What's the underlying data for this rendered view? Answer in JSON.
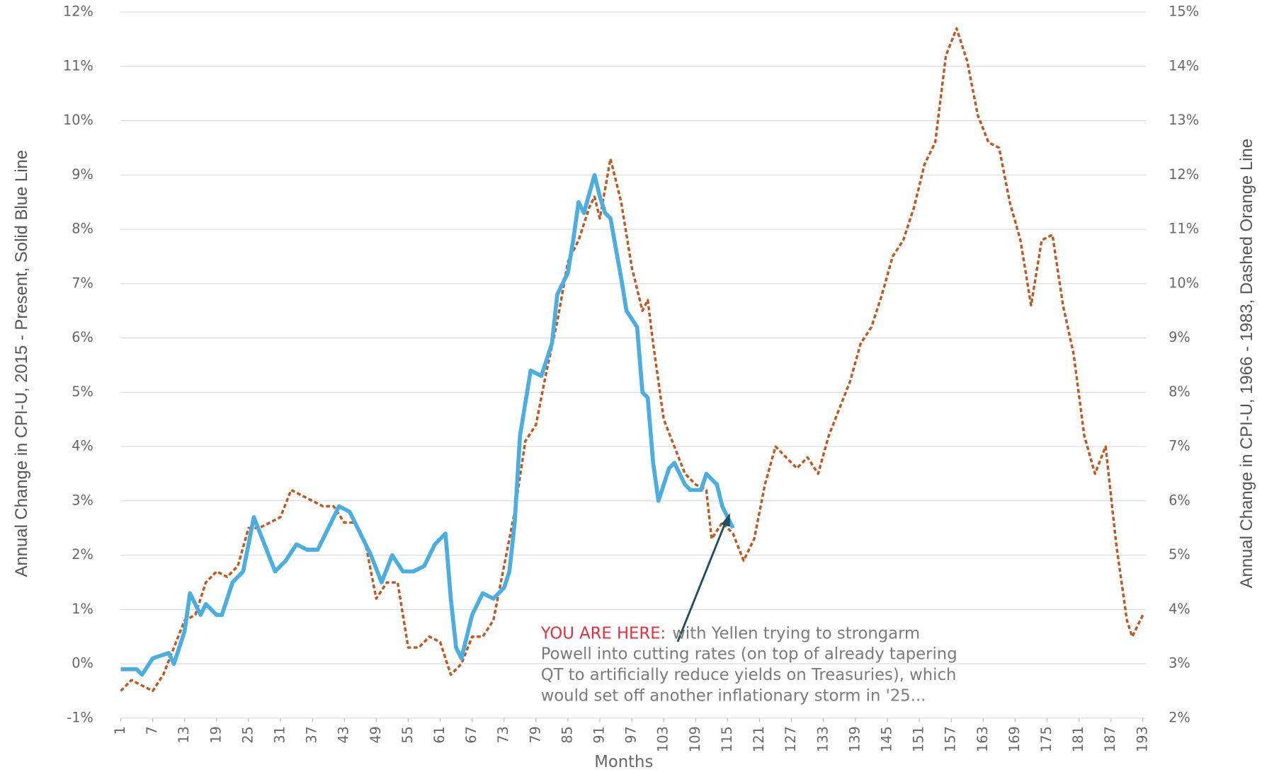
{
  "chart_data": {
    "type": "line",
    "xlabel": "Months",
    "ylabel": "Annual Change in CPI-U, 2015 - Present, Solid Blue Line",
    "y2label": "Annual Change in CPI-U, 1966 - 1983, Dashed Orange Line",
    "xlim": [
      1,
      193
    ],
    "xticks": [
      1,
      7,
      13,
      19,
      25,
      31,
      37,
      43,
      49,
      55,
      61,
      67,
      73,
      79,
      85,
      91,
      97,
      103,
      109,
      115,
      121,
      127,
      133,
      139,
      145,
      151,
      157,
      163,
      169,
      175,
      181,
      187,
      193
    ],
    "ylim": [
      -1,
      12
    ],
    "yticks": [
      {
        "value": -1,
        "label": "-1%"
      },
      {
        "value": 0,
        "label": "0%"
      },
      {
        "value": 1,
        "label": "1%"
      },
      {
        "value": 2,
        "label": "2%"
      },
      {
        "value": 3,
        "label": "3%"
      },
      {
        "value": 4,
        "label": "4%"
      },
      {
        "value": 5,
        "label": "5%"
      },
      {
        "value": 6,
        "label": "6%"
      },
      {
        "value": 7,
        "label": "7%"
      },
      {
        "value": 8,
        "label": "8%"
      },
      {
        "value": 9,
        "label": "9%"
      },
      {
        "value": 10,
        "label": "10%"
      },
      {
        "value": 11,
        "label": "11%"
      },
      {
        "value": 12,
        "label": "12%"
      }
    ],
    "y2lim": [
      2,
      15
    ],
    "y2ticks": [
      {
        "value": 2,
        "label": "2%"
      },
      {
        "value": 3,
        "label": "3%"
      },
      {
        "value": 4,
        "label": "4%"
      },
      {
        "value": 5,
        "label": "5%"
      },
      {
        "value": 6,
        "label": "6%"
      },
      {
        "value": 7,
        "label": "7%"
      },
      {
        "value": 8,
        "label": "8%"
      },
      {
        "value": 9,
        "label": "9%"
      },
      {
        "value": 10,
        "label": "10%"
      },
      {
        "value": 11,
        "label": "11%"
      },
      {
        "value": 12,
        "label": "12%"
      },
      {
        "value": 13,
        "label": "13%"
      },
      {
        "value": 14,
        "label": "14%"
      },
      {
        "value": 15,
        "label": "15%"
      }
    ],
    "grid": true,
    "series": [
      {
        "color": "#4aaee0",
        "style": "solid",
        "axis": "y",
        "x": [
          1,
          4,
          5,
          7,
          10,
          11,
          13,
          14,
          16,
          17,
          19,
          20,
          22,
          24,
          26,
          28,
          30,
          32,
          34,
          36,
          38,
          40,
          42,
          44,
          46,
          48,
          50,
          52,
          54,
          56,
          58,
          60,
          62,
          63,
          64,
          65,
          67,
          69,
          71,
          73,
          74,
          75,
          76,
          78,
          80,
          82,
          83,
          85,
          86,
          87,
          88,
          90,
          91,
          92,
          93,
          95,
          96,
          98,
          99,
          100,
          101,
          102,
          104,
          105,
          107,
          108,
          110,
          111,
          113,
          114,
          116
        ],
        "values": [
          -0.1,
          -0.1,
          -0.2,
          0.1,
          0.2,
          0.0,
          0.6,
          1.3,
          0.9,
          1.1,
          0.9,
          0.9,
          1.5,
          1.7,
          2.7,
          2.2,
          1.7,
          1.9,
          2.2,
          2.1,
          2.1,
          2.5,
          2.9,
          2.8,
          2.4,
          2.0,
          1.5,
          2.0,
          1.7,
          1.7,
          1.8,
          2.2,
          2.4,
          1.2,
          0.3,
          0.1,
          0.9,
          1.3,
          1.2,
          1.4,
          1.7,
          2.6,
          4.2,
          5.4,
          5.3,
          5.9,
          6.8,
          7.2,
          7.8,
          8.5,
          8.3,
          9.0,
          8.6,
          8.3,
          8.2,
          7.1,
          6.5,
          6.2,
          5.0,
          4.9,
          3.7,
          3.0,
          3.6,
          3.7,
          3.3,
          3.2,
          3.2,
          3.5,
          3.3,
          2.9,
          2.5
        ]
      },
      {
        "color": "#c0571e",
        "style": "dashed",
        "axis": "y2",
        "x": [
          1,
          3,
          5,
          7,
          9,
          11,
          13,
          15,
          17,
          19,
          21,
          23,
          25,
          27,
          29,
          31,
          33,
          35,
          37,
          39,
          41,
          43,
          45,
          47,
          49,
          51,
          53,
          55,
          57,
          59,
          61,
          63,
          65,
          67,
          69,
          71,
          73,
          75,
          77,
          79,
          81,
          83,
          85,
          87,
          89,
          90,
          91,
          93,
          95,
          97,
          99,
          100,
          101,
          103,
          105,
          107,
          109,
          111,
          112,
          114,
          116,
          118,
          120,
          122,
          124,
          126,
          128,
          130,
          132,
          134,
          136,
          138,
          140,
          142,
          144,
          146,
          148,
          150,
          152,
          154,
          156,
          158,
          160,
          162,
          164,
          166,
          168,
          170,
          172,
          174,
          176,
          178,
          180,
          182,
          184,
          186,
          188,
          190,
          191,
          193
        ],
        "values": [
          2.5,
          2.7,
          2.6,
          2.5,
          2.8,
          3.3,
          3.8,
          3.9,
          4.5,
          4.7,
          4.6,
          4.8,
          5.5,
          5.5,
          5.6,
          5.7,
          6.2,
          6.1,
          6.0,
          5.9,
          5.9,
          5.6,
          5.6,
          5.2,
          4.2,
          4.5,
          4.5,
          3.3,
          3.3,
          3.5,
          3.4,
          2.8,
          3.0,
          3.5,
          3.5,
          3.8,
          4.8,
          5.8,
          7.1,
          7.4,
          8.4,
          9.3,
          10.4,
          10.8,
          11.4,
          11.6,
          11.2,
          12.3,
          11.5,
          10.3,
          9.5,
          9.7,
          8.9,
          7.5,
          7.0,
          6.5,
          6.3,
          6.2,
          5.3,
          5.6,
          5.4,
          4.9,
          5.3,
          6.3,
          7.0,
          6.8,
          6.6,
          6.8,
          6.5,
          7.2,
          7.7,
          8.2,
          8.9,
          9.2,
          9.8,
          10.5,
          10.8,
          11.4,
          12.2,
          12.6,
          14.2,
          14.7,
          14.1,
          13.1,
          12.6,
          12.5,
          11.5,
          10.8,
          9.6,
          10.8,
          10.9,
          9.6,
          8.7,
          7.2,
          6.5,
          7.0,
          5.2,
          3.8,
          3.5,
          3.9
        ]
      }
    ],
    "annotation": {
      "highlight": "YOU ARE HERE:",
      "lines": [
        "with Yellen trying to strongarm",
        "Powell into cutting rates (on top of already tapering",
        "QT to artificially reduce yields on Treasuries), which",
        "would set off another inflationary storm in '25..."
      ]
    }
  }
}
